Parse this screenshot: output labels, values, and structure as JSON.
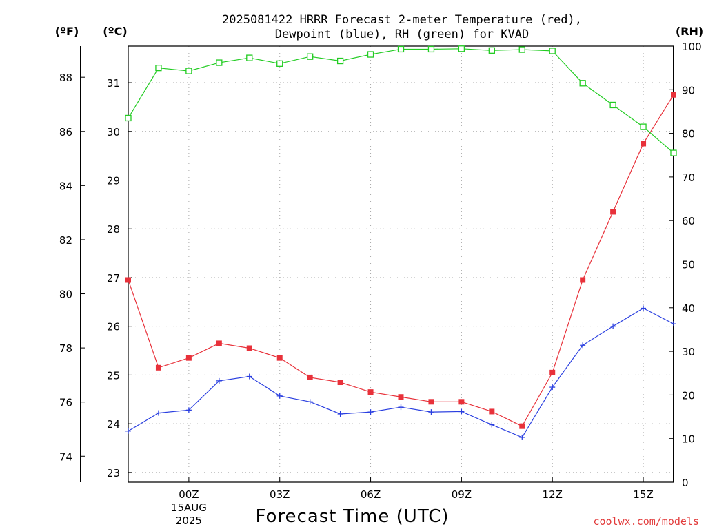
{
  "chart_data": {
    "type": "line",
    "title": [
      "2025081422 HRRR Forecast 2-meter Temperature (red),",
      "Dewpoint (blue), RH (green) for KVAD"
    ],
    "xlabel": "Forecast Time (UTC)",
    "credit": "coolwx.com/models",
    "units": {
      "f": "(ºF)",
      "c": "(ºC)",
      "rh": "(RH)"
    },
    "x_hours": [
      22,
      23,
      24,
      25,
      26,
      27,
      28,
      29,
      30,
      31,
      32,
      33,
      34,
      35,
      36,
      37,
      38,
      39,
      40
    ],
    "x_ticks": [
      {
        "hour": 24,
        "lines": [
          "00Z",
          "15AUG",
          "2025"
        ]
      },
      {
        "hour": 27,
        "lines": [
          "03Z"
        ]
      },
      {
        "hour": 30,
        "lines": [
          "06Z"
        ]
      },
      {
        "hour": 33,
        "lines": [
          "09Z"
        ]
      },
      {
        "hour": 36,
        "lines": [
          "12Z"
        ]
      },
      {
        "hour": 39,
        "lines": [
          "15Z"
        ]
      }
    ],
    "xlim": [
      22,
      40
    ],
    "c_ylim": [
      22.8,
      31.75
    ],
    "c_ticks": [
      23,
      24,
      25,
      26,
      27,
      28,
      29,
      30,
      31
    ],
    "f_ticks": [
      74,
      76,
      78,
      80,
      82,
      84,
      86,
      88
    ],
    "rh_ylim": [
      0,
      100
    ],
    "rh_ticks": [
      0,
      10,
      20,
      30,
      40,
      50,
      60,
      70,
      80,
      90,
      100
    ],
    "grid": true,
    "colors": {
      "temperature": "#e8313a",
      "dewpoint": "#2a3fe0",
      "rh": "#22cc22"
    },
    "series": [
      {
        "key": "temperature",
        "axis": "c",
        "marker": "square-filled",
        "values": [
          26.95,
          25.15,
          25.35,
          25.65,
          25.55,
          25.35,
          24.95,
          24.85,
          24.65,
          24.55,
          24.45,
          24.45,
          24.25,
          23.95,
          25.05,
          26.95,
          28.35,
          29.75,
          30.75
        ]
      },
      {
        "key": "dewpoint",
        "axis": "c",
        "marker": "plus",
        "values": [
          23.85,
          24.22,
          24.28,
          24.88,
          24.97,
          24.57,
          24.45,
          24.2,
          24.24,
          24.34,
          24.24,
          24.25,
          23.98,
          23.72,
          24.75,
          25.61,
          26.0,
          26.37,
          26.05
        ]
      },
      {
        "key": "rh",
        "axis": "rh",
        "marker": "square-open",
        "values": [
          83.5,
          95,
          94.3,
          96.2,
          97.3,
          96,
          97.6,
          96.6,
          98.1,
          99.3,
          99.3,
          99.4,
          99,
          99.2,
          98.9,
          91.5,
          86.5,
          81.5,
          75.5
        ]
      }
    ]
  }
}
